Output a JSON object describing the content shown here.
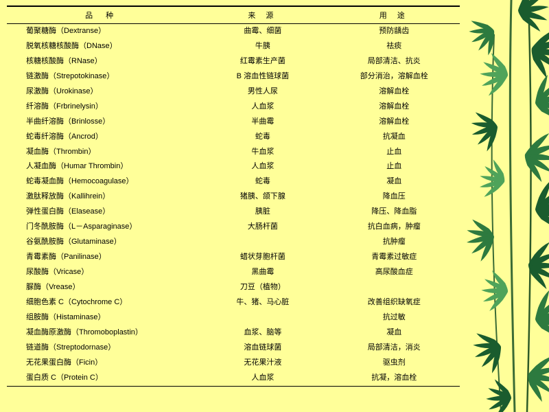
{
  "table": {
    "headers": [
      "品 种",
      "来 源",
      "用 途"
    ],
    "rows": [
      [
        "葡聚糖酶（Dextranse）",
        "曲霉、细菌",
        "预防龋齿"
      ],
      [
        "脱氧核糖核酸酶（DNase）",
        "牛胰",
        "祛痰"
      ],
      [
        "核糖核酸酶（RNase）",
        "红霉素生产菌",
        "局部清洁、抗炎"
      ],
      [
        "链激酶（Strepotokinase）",
        "B 溶血性链球菌",
        "部分消治，溶解血栓"
      ],
      [
        "尿激酶（Urokinase）",
        "男性人尿",
        "溶解血栓"
      ],
      [
        "纤溶酶（Frbrinelysin）",
        "人血浆",
        "溶解血栓"
      ],
      [
        "半曲纤溶酶（Brinlosse）",
        "半曲霉",
        "溶解血栓"
      ],
      [
        "蛇毒纤溶酶（Ancrod）",
        "蛇毒",
        "抗凝血"
      ],
      [
        "凝血酶（Thrombin）",
        "牛血浆",
        "止血"
      ],
      [
        "人凝血酶（Humar Thrombin）",
        "人血浆",
        "止血"
      ],
      [
        "蛇毒凝血酶（Hemocoagulase）",
        "蛇毒",
        "凝血"
      ],
      [
        "激肽释放酶（Kallihrein）",
        "猪胰、颌下腺",
        "降血压"
      ],
      [
        "弹性蛋白酶（Elasease）",
        "胰脏",
        "降压、降血脂"
      ],
      [
        "门冬酰胺酶（L－Asparaginase）",
        "大肠杆菌",
        "抗白血病，肿瘤"
      ],
      [
        "谷氨酰胺酶（Glutaminase）",
        "",
        "抗肿瘤"
      ],
      [
        "青霉素酶（Panilinase）",
        "蜡状芽胞杆菌",
        "青霉素过敏症"
      ],
      [
        "尿酸酶（Vricase）",
        "黑曲霉",
        "高尿酸血症"
      ],
      [
        "脲酶（Vrease）",
        "刀豆（植物）",
        ""
      ],
      [
        "细胞色素 C（Cytochrome C）",
        "牛、猪、马心脏",
        "改善组织缺氧症"
      ],
      [
        "组胺酶（Histaminase）",
        "",
        "抗过敏"
      ],
      [
        "凝血酶原激酶（Thromoboplastin）",
        "血浆、脑等",
        "凝血"
      ],
      [
        "链道酶（Streptodornase）",
        "溶血链球菌",
        "局部清洁，消炎"
      ],
      [
        "无花果蛋白酶（Ficin）",
        "无花果汁液",
        "驱虫剂"
      ],
      [
        "蛋白质 C（Protein C）",
        "人血浆",
        "抗凝，溶血栓"
      ]
    ]
  },
  "bamboo": {
    "leaf_dark": "#1a5c2e",
    "leaf_mid": "#2d7a3f",
    "leaf_light": "#4fa35a",
    "stem": "#3a6b35"
  }
}
